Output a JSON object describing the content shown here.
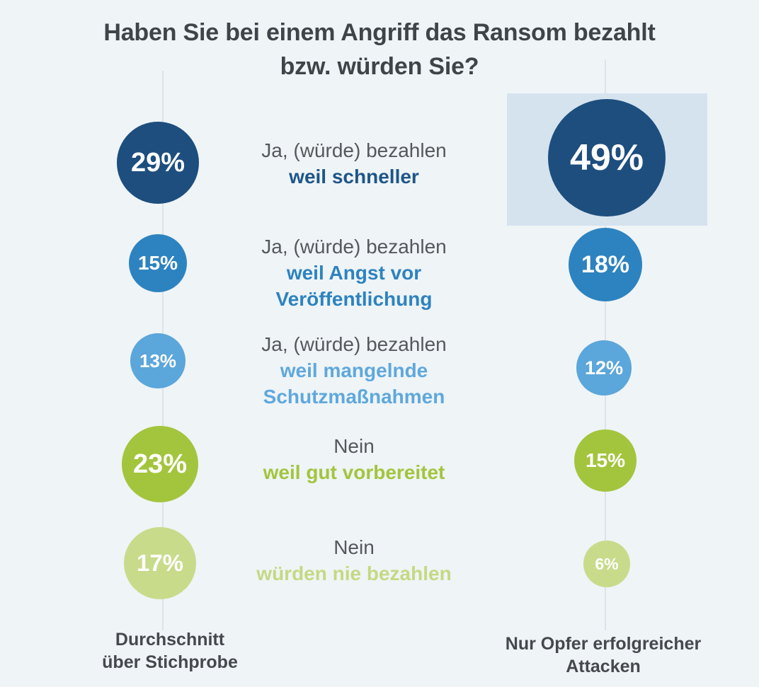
{
  "chart_data": {
    "type": "bubble",
    "title": "Haben Sie bei einem Angriff das Ransom bezahlt\nbzw. würden Sie?",
    "unit": "%",
    "legend_position": "none",
    "grid": false,
    "columns": [
      {
        "label": "Durchschnitt\nüber Stichprobe"
      },
      {
        "label": "Nur Opfer erfolgreicher\nAttacken"
      }
    ],
    "rows": [
      {
        "answer": "Ja, (würde) bezahlen",
        "reason": "weil schneller",
        "values": [
          29,
          49
        ],
        "value_labels": [
          "29%",
          "49%"
        ],
        "color": "#1d4e7e",
        "reason_color": "#1e5688",
        "highlighted_value_index": 1
      },
      {
        "answer": "Ja, (würde) bezahlen",
        "reason": "weil Angst vor\nVeröffentlichung",
        "values": [
          15,
          18
        ],
        "value_labels": [
          "15%",
          "18%"
        ],
        "color": "#2d83bf",
        "reason_color": "#2d83bf"
      },
      {
        "answer": "Ja, (würde) bezahlen",
        "reason": "weil mangelnde\nSchutzmaßnahmen",
        "values": [
          13,
          12
        ],
        "value_labels": [
          "13%",
          "12%"
        ],
        "color": "#5ba6da",
        "reason_color": "#5fa8dc"
      },
      {
        "answer": "Nein",
        "reason": "weil gut vorbereitet",
        "values": [
          23,
          15
        ],
        "value_labels": [
          "23%",
          "15%"
        ],
        "color": "#a3c53d",
        "reason_color": "#a3c53d"
      },
      {
        "answer": "Nein",
        "reason": "würden nie bezahlen",
        "values": [
          17,
          6
        ],
        "value_labels": [
          "17%",
          "6%"
        ],
        "color": "#c8db8b",
        "reason_color": "#c5d983"
      }
    ],
    "colors": {
      "background": "#eff4f7",
      "highlight_box": "#d5e3ef",
      "spine_line": "#dde3e8",
      "title_text": "#3f4449",
      "answer_text": "#55585c",
      "column_label_text": "#45494d",
      "value_text": "#ffffff"
    }
  }
}
